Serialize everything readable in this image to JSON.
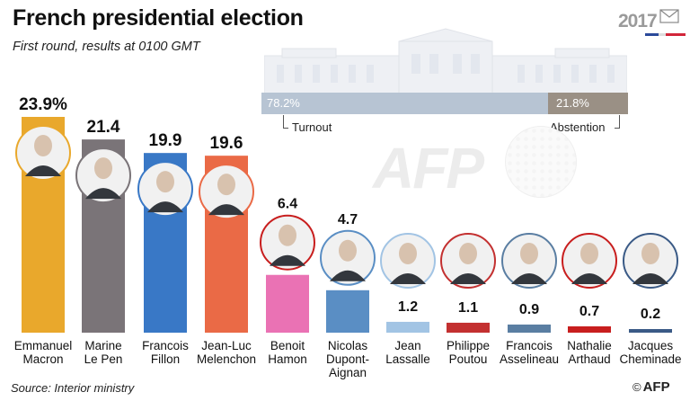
{
  "header": {
    "title": "French presidential election",
    "subtitle": "First round, results at 0100 GMT",
    "logo_year": "2017"
  },
  "turnout": {
    "turnout_value": "78.2%",
    "turnout_label": "Turnout",
    "abstention_value": "21.8%",
    "abstention_label": "Abstention",
    "turnout_fraction": 0.782,
    "colors": {
      "turnout": "#b7c4d3",
      "abstention": "#9a9085"
    }
  },
  "watermark": "AFP",
  "footer": {
    "source": "Source: Interior ministry",
    "credit": "AFP",
    "credit_symbol": "©"
  },
  "chart_data": {
    "type": "bar",
    "title": "French presidential election",
    "subtitle": "First round, results at 0100 GMT",
    "xlabel": "",
    "ylabel": "",
    "ylim": [
      0,
      25
    ],
    "grid": false,
    "categories": [
      "Emmanuel Macron",
      "Marine Le Pen",
      "Francois Fillon",
      "Jean-Luc Melenchon",
      "Benoit Hamon",
      "Nicolas Dupont-Aignan",
      "Jean Lassalle",
      "Philippe Poutou",
      "Francois Asselineau",
      "Nathalie Arthaud",
      "Jacques Cheminade"
    ],
    "category_lines": [
      [
        "Emmanuel",
        "Macron"
      ],
      [
        "Marine",
        "Le Pen"
      ],
      [
        "Francois",
        "Fillon"
      ],
      [
        "Jean-Luc",
        "Melenchon"
      ],
      [
        "Benoit",
        "Hamon"
      ],
      [
        "Nicolas",
        "Dupont-",
        "Aignan"
      ],
      [
        "Jean",
        "Lassalle"
      ],
      [
        "Philippe",
        "Poutou"
      ],
      [
        "Francois",
        "Asselineau"
      ],
      [
        "Nathalie",
        "Arthaud"
      ],
      [
        "Jacques",
        "Cheminade"
      ]
    ],
    "values": [
      23.9,
      21.4,
      19.9,
      19.6,
      6.4,
      4.7,
      1.2,
      1.1,
      0.9,
      0.7,
      0.2
    ],
    "value_labels": [
      "23.9%",
      "21.4",
      "19.9",
      "19.6",
      "6.4",
      "4.7",
      "1.2",
      "1.1",
      "0.9",
      "0.7",
      "0.2"
    ],
    "colors": [
      "#e9a82c",
      "#7a7478",
      "#3978c6",
      "#ea6a46",
      "#ea72b4",
      "#5a8ec4",
      "#a2c4e4",
      "#c33030",
      "#5a7ea2",
      "#c81e1e",
      "#3a5a86"
    ],
    "ring_colors": [
      "#e9a82c",
      "#7a7478",
      "#3978c6",
      "#ea6a46",
      "#c81e1e",
      "#5a8ec4",
      "#a2c4e4",
      "#c33030",
      "#5a7ea2",
      "#c81e1e",
      "#3a5a86"
    ]
  }
}
